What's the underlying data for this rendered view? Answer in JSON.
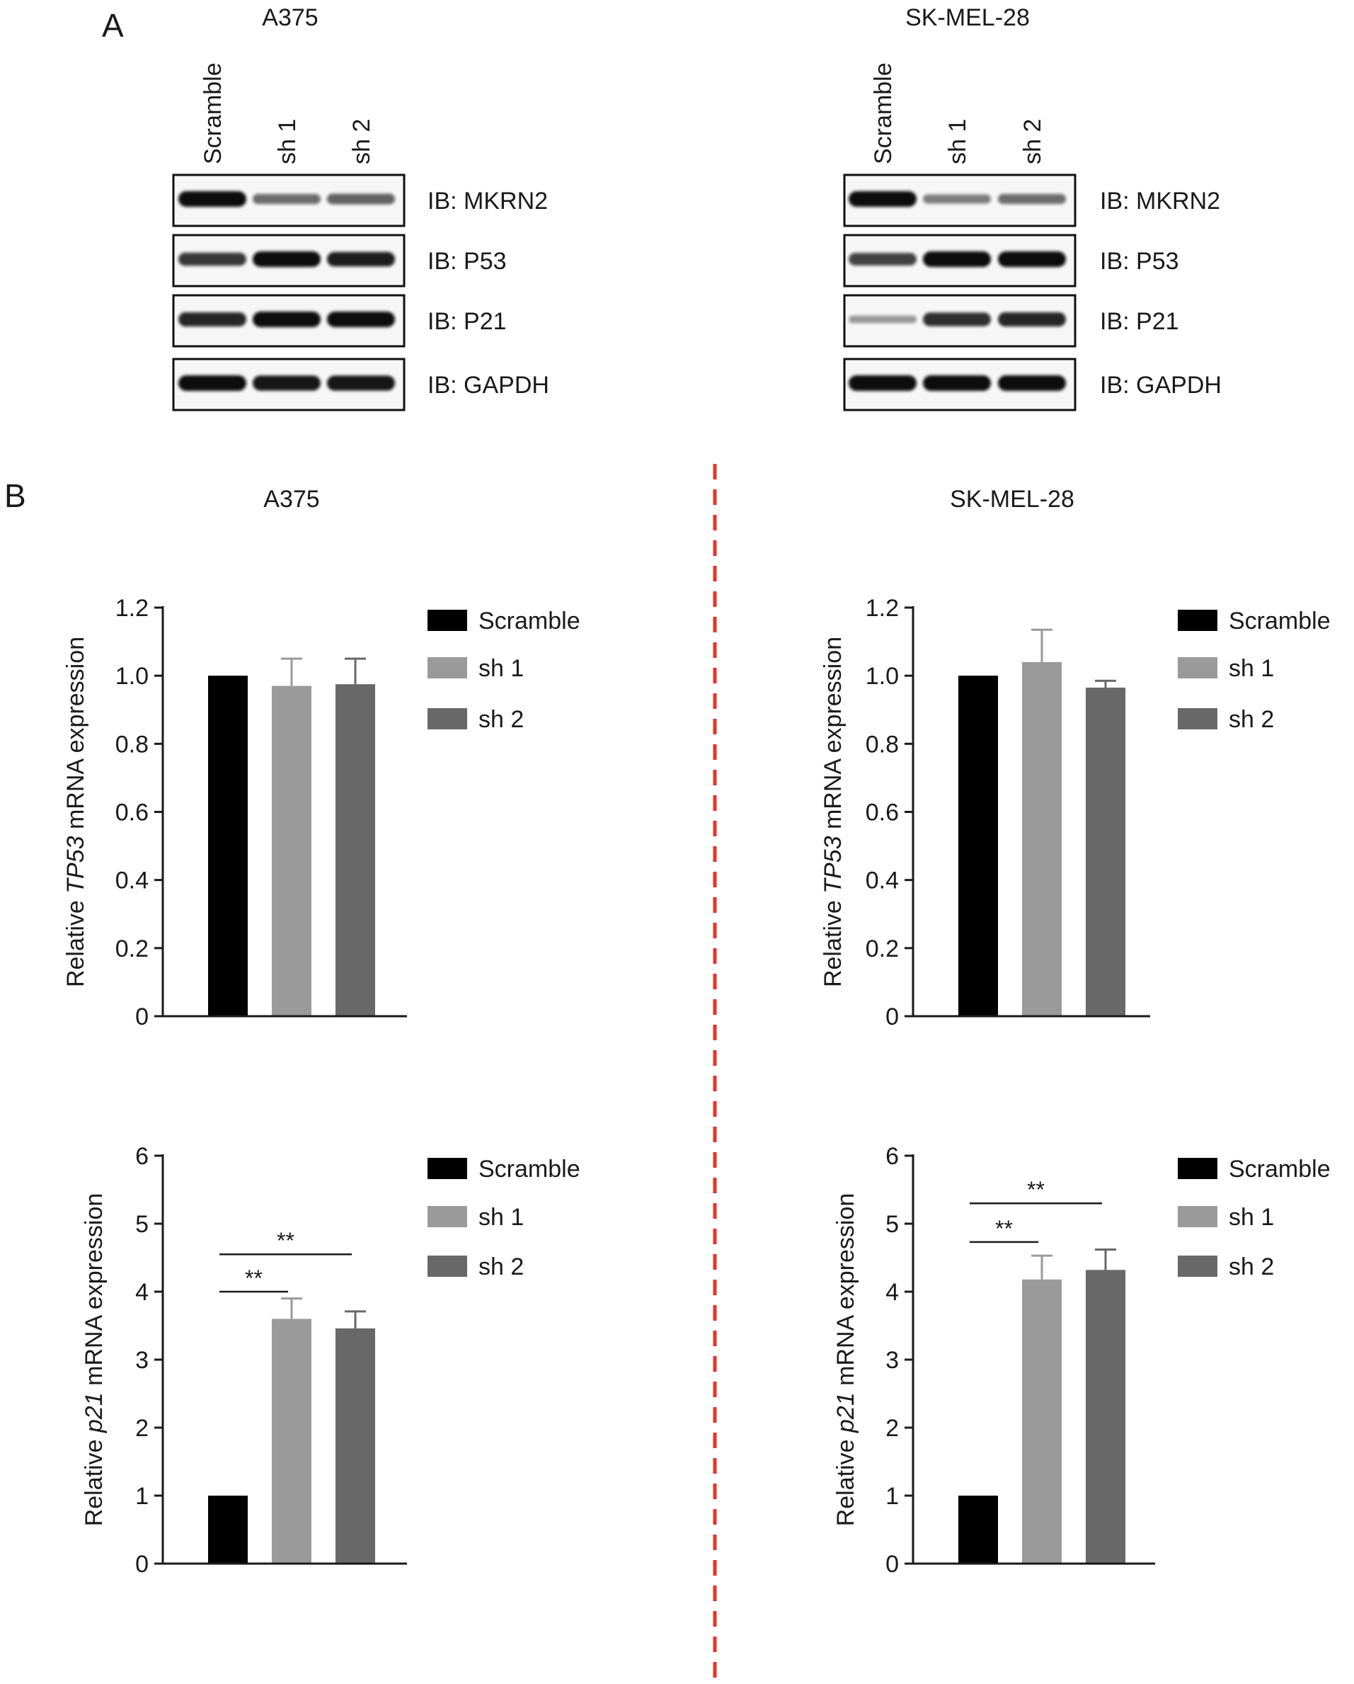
{
  "colors": {
    "scramble": "#000000",
    "sh1": "#9a9a9a",
    "sh2": "#686868",
    "divider": "#e8322b",
    "axis": "#1a1a1a",
    "blot_bg": "#f6f6f6",
    "band": "#101010"
  },
  "panel_a": {
    "label": "A",
    "lane_labels": [
      "Scramble",
      "sh 1",
      "sh 2"
    ],
    "blot_labels": [
      "IB: MKRN2",
      "IB: P53",
      "IB: P21",
      "IB: GAPDH"
    ],
    "blots": [
      {
        "cell_line": "A375",
        "band_intensity": [
          [
            1.0,
            0.45,
            0.5
          ],
          [
            0.75,
            1.0,
            0.9
          ],
          [
            0.85,
            1.0,
            1.0
          ],
          [
            1.0,
            0.95,
            0.95
          ]
        ]
      },
      {
        "cell_line": "SK-MEL-28",
        "band_intensity": [
          [
            1.0,
            0.35,
            0.45
          ],
          [
            0.7,
            1.0,
            1.0
          ],
          [
            0.2,
            0.8,
            0.85
          ],
          [
            1.0,
            1.0,
            1.0
          ]
        ]
      }
    ]
  },
  "panel_b": {
    "label": "B",
    "column_titles": [
      "A375",
      "SK-MEL-28"
    ]
  },
  "chart_data": [
    {
      "type": "bar",
      "cell_line": "A375",
      "ylabel": [
        "Relative ",
        "TP53",
        " mRNA expression"
      ],
      "categories": [
        "Scramble",
        "sh 1",
        "sh 2"
      ],
      "values": [
        1.0,
        0.97,
        0.975
      ],
      "errors": [
        0,
        0.08,
        0.075
      ],
      "ylim": [
        0,
        1.2
      ],
      "yticks": [
        0,
        0.2,
        0.4,
        0.6,
        0.8,
        1.0,
        1.2
      ],
      "ytick_labels": [
        "0",
        "0.2",
        "0.4",
        "0.6",
        "0.8",
        "1.0",
        "1.2"
      ],
      "legend": [
        "Scramble",
        "sh 1",
        "sh 2"
      ],
      "legend_position": "right",
      "significance": []
    },
    {
      "type": "bar",
      "cell_line": "SK-MEL-28",
      "ylabel": [
        "Relative ",
        "TP53",
        " mRNA expression"
      ],
      "categories": [
        "Scramble",
        "sh 1",
        "sh 2"
      ],
      "values": [
        1.0,
        1.04,
        0.965
      ],
      "errors": [
        0,
        0.095,
        0.02
      ],
      "ylim": [
        0,
        1.2
      ],
      "yticks": [
        0,
        0.2,
        0.4,
        0.6,
        0.8,
        1.0,
        1.2
      ],
      "ytick_labels": [
        "0",
        "0.2",
        "0.4",
        "0.6",
        "0.8",
        "1.0",
        "1.2"
      ],
      "legend": [
        "Scramble",
        "sh 1",
        "sh 2"
      ],
      "legend_position": "right",
      "significance": []
    },
    {
      "type": "bar",
      "cell_line": "A375",
      "ylabel": [
        "Relative ",
        "p21",
        " mRNA expression"
      ],
      "categories": [
        "Scramble",
        "sh 1",
        "sh 2"
      ],
      "values": [
        1.0,
        3.6,
        3.46
      ],
      "errors": [
        0,
        0.3,
        0.25
      ],
      "ylim": [
        0,
        6
      ],
      "yticks": [
        0,
        1,
        2,
        3,
        4,
        5,
        6
      ],
      "ytick_labels": [
        "0",
        "1",
        "2",
        "3",
        "4",
        "5",
        "6"
      ],
      "legend": [
        "Scramble",
        "sh 1",
        "sh 2"
      ],
      "legend_position": "right",
      "significance": [
        {
          "from": 0,
          "to": 1,
          "label": "**",
          "y": 4.0
        },
        {
          "from": 0,
          "to": 2,
          "label": "**",
          "y": 4.55
        }
      ]
    },
    {
      "type": "bar",
      "cell_line": "SK-MEL-28",
      "ylabel": [
        "Relative ",
        "p21",
        " mRNA expression"
      ],
      "categories": [
        "Scramble",
        "sh 1",
        "sh 2"
      ],
      "values": [
        1.0,
        4.18,
        4.32
      ],
      "errors": [
        0,
        0.35,
        0.3
      ],
      "ylim": [
        0,
        6
      ],
      "yticks": [
        0,
        1,
        2,
        3,
        4,
        5,
        6
      ],
      "ytick_labels": [
        "0",
        "1",
        "2",
        "3",
        "4",
        "5",
        "6"
      ],
      "legend": [
        "Scramble",
        "sh 1",
        "sh 2"
      ],
      "legend_position": "right",
      "significance": [
        {
          "from": 0,
          "to": 1,
          "label": "**",
          "y": 4.73
        },
        {
          "from": 0,
          "to": 2,
          "label": "**",
          "y": 5.3
        }
      ]
    }
  ]
}
